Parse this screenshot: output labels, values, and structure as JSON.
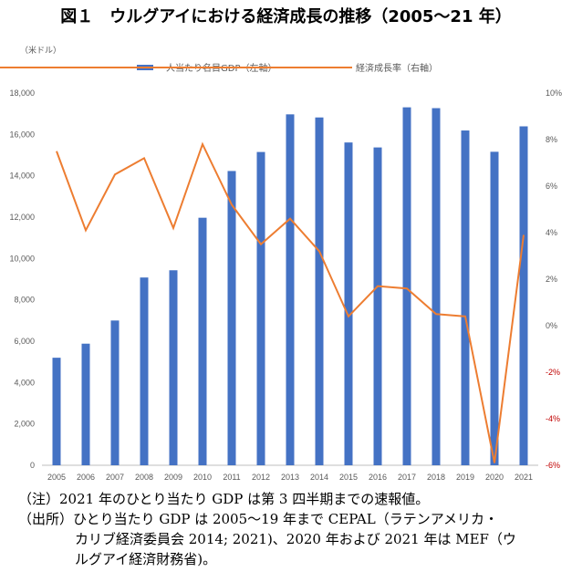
{
  "title": "図１　ウルグアイにおける経済成長の推移（2005〜21 年）",
  "chart_data": {
    "type": "bar+line",
    "left_unit": "（米ドル）",
    "categories": [
      "2005",
      "2006",
      "2007",
      "2008",
      "2009",
      "2010",
      "2011",
      "2012",
      "2013",
      "2014",
      "2015",
      "2016",
      "2017",
      "2018",
      "2019",
      "2020",
      "2021"
    ],
    "series": [
      {
        "name": "一人当たり名目GDP（左軸）",
        "type": "bar",
        "axis": "left",
        "color": "#4472C4",
        "values": [
          5200,
          5880,
          7000,
          9080,
          9430,
          11970,
          14230,
          15150,
          16970,
          16820,
          15610,
          15370,
          17310,
          17270,
          16190,
          15160,
          16390
        ]
      },
      {
        "name": "経済成長率（右軸）",
        "type": "line",
        "axis": "right",
        "color": "#ED7D31",
        "values": [
          7.5,
          4.1,
          6.5,
          7.2,
          4.2,
          7.8,
          5.2,
          3.5,
          4.6,
          3.2,
          0.4,
          1.7,
          1.6,
          0.5,
          0.4,
          -5.9,
          3.9
        ]
      }
    ],
    "y_left": {
      "min": 0,
      "max": 18000,
      "step": 2000,
      "ticks": [
        "0",
        "2,000",
        "4,000",
        "6,000",
        "8,000",
        "10,000",
        "12,000",
        "14,000",
        "16,000",
        "18,000"
      ]
    },
    "y_right": {
      "min": -6,
      "max": 10,
      "step": 2,
      "ticks": [
        "-6%",
        "-4%",
        "-2%",
        "0%",
        "2%",
        "4%",
        "6%",
        "8%",
        "10%"
      ]
    },
    "legend": "top",
    "grid": false
  },
  "notes": [
    {
      "label": "（注）",
      "text": "2021 年のひとり当たり GDP は第 3 四半期までの速報値。"
    },
    {
      "label": "（出所）",
      "text": "ひとり当たり GDP は 2005〜19 年まで CEPAL（ラテンアメリカ・"
    },
    {
      "label": "",
      "text": "カリブ経済委員会 2014; 2021)、2020 年および 2021 年は MEF（ウ"
    },
    {
      "label": "",
      "text": "ルグアイ経済財務省)。"
    }
  ]
}
